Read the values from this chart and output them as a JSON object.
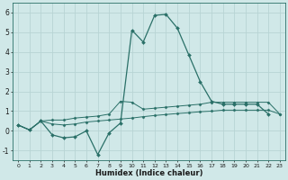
{
  "xlabel": "Humidex (Indice chaleur)",
  "x": [
    0,
    1,
    2,
    3,
    4,
    5,
    6,
    7,
    8,
    9,
    10,
    11,
    12,
    13,
    14,
    15,
    16,
    17,
    18,
    19,
    20,
    21,
    22,
    23
  ],
  "line1": [
    0.3,
    0.05,
    0.5,
    -0.2,
    -0.35,
    -0.3,
    0.0,
    -1.2,
    -0.1,
    0.4,
    5.1,
    4.5,
    5.85,
    5.9,
    5.2,
    3.85,
    2.5,
    1.5,
    1.35,
    1.35,
    1.35,
    1.35,
    0.85,
    null
  ],
  "line2": [
    0.3,
    0.05,
    0.5,
    0.55,
    0.55,
    0.65,
    0.7,
    0.75,
    0.85,
    1.5,
    1.45,
    1.1,
    1.15,
    1.2,
    1.25,
    1.3,
    1.35,
    1.45,
    1.45,
    1.45,
    1.45,
    1.45,
    1.45,
    0.85
  ],
  "line3": [
    0.3,
    0.05,
    0.5,
    0.35,
    0.3,
    0.35,
    0.45,
    0.5,
    0.55,
    0.6,
    0.65,
    0.72,
    0.78,
    0.83,
    0.88,
    0.92,
    0.97,
    1.0,
    1.05,
    1.05,
    1.05,
    1.05,
    1.05,
    0.85
  ],
  "color": "#2a7068",
  "bg_color": "#d0e8e8",
  "grid_color": "#b8d4d4",
  "ylim": [
    -1.5,
    6.5
  ],
  "yticks": [
    -1,
    0,
    1,
    2,
    3,
    4,
    5,
    6
  ],
  "xlim": [
    -0.5,
    23.5
  ],
  "xticks": [
    0,
    1,
    2,
    3,
    4,
    5,
    6,
    7,
    8,
    9,
    10,
    11,
    12,
    13,
    14,
    15,
    16,
    17,
    18,
    19,
    20,
    21,
    22,
    23
  ]
}
